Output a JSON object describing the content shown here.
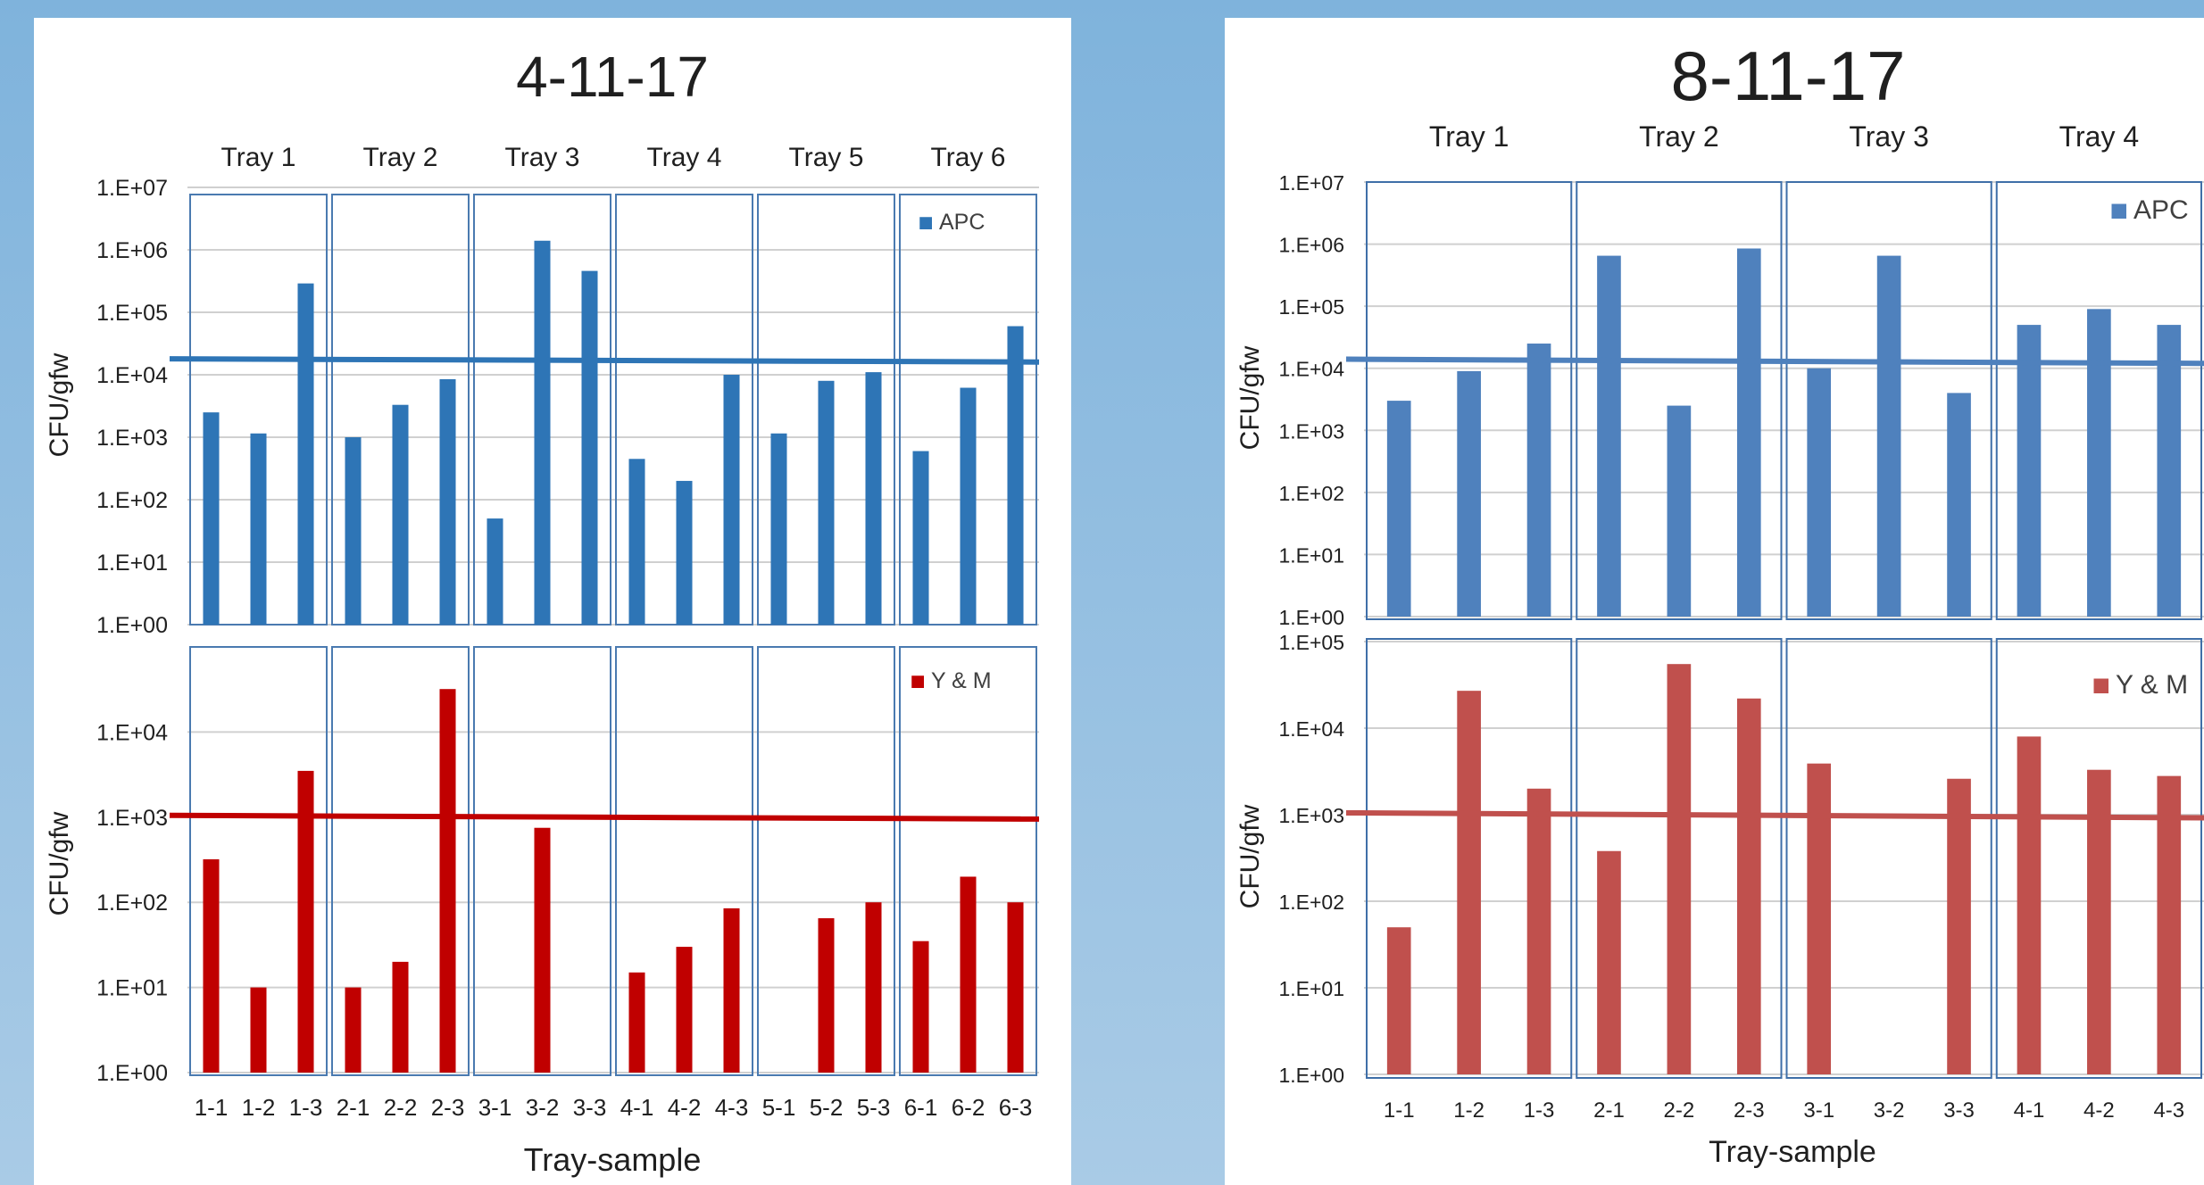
{
  "chart_data": [
    {
      "type": "bar",
      "title": "4-11-17",
      "xlabel": "Tray-sample",
      "ylabel": "CFU/gfw",
      "groups": [
        "Tray 1",
        "Tray 2",
        "Tray 3",
        "Tray 4",
        "Tray 5",
        "Tray 6"
      ],
      "categories": [
        "1-1",
        "1-2",
        "1-3",
        "2-1",
        "2-2",
        "2-3",
        "3-1",
        "3-2",
        "3-3",
        "4-1",
        "4-2",
        "4-3",
        "5-1",
        "5-2",
        "5-3",
        "6-1",
        "6-2",
        "6-3"
      ],
      "panels": [
        {
          "name": "APC",
          "color": "#2e75b6",
          "yscale": "log",
          "ylim": [
            1,
            10000000
          ],
          "yticks": [
            "1.E+00",
            "1.E+01",
            "1.E+02",
            "1.E+03",
            "1.E+04",
            "1.E+05",
            "1.E+06",
            "1.E+07"
          ],
          "values": [
            2500,
            1150,
            290000,
            1000,
            3300,
            8500,
            50,
            1400000,
            460000,
            450,
            200,
            10000,
            1150,
            8000,
            11000,
            600,
            6200,
            60000
          ],
          "threshold": [
            18000,
            16000
          ]
        },
        {
          "name": "Y & M",
          "color": "#c00000",
          "yscale": "log",
          "ylim": [
            1,
            100000
          ],
          "yticks": [
            "1.E+00",
            "1.E+01",
            "1.E+02",
            "1.E+03",
            "1.E+04"
          ],
          "values": [
            320,
            10,
            3500,
            10,
            20,
            32000,
            null,
            750,
            null,
            15,
            30,
            85,
            null,
            65,
            100,
            35,
            200,
            100
          ],
          "threshold": [
            1050,
            950
          ]
        }
      ]
    },
    {
      "type": "bar",
      "title": "8-11-17",
      "xlabel": "Tray-sample",
      "ylabel": "CFU/gfw",
      "groups": [
        "Tray 1",
        "Tray 2",
        "Tray 3",
        "Tray 4"
      ],
      "categories": [
        "1-1",
        "1-2",
        "1-3",
        "2-1",
        "2-2",
        "2-3",
        "3-1",
        "3-2",
        "3-3",
        "4-1",
        "4-2",
        "4-3"
      ],
      "panels": [
        {
          "name": "APC",
          "color": "#4f81bd",
          "yscale": "log",
          "ylim": [
            1,
            10000000
          ],
          "yticks": [
            "1.E+00",
            "1.E+01",
            "1.E+02",
            "1.E+03",
            "1.E+04",
            "1.E+05",
            "1.E+06",
            "1.E+07"
          ],
          "values": [
            3000,
            9000,
            25000,
            650000,
            2500,
            850000,
            10000,
            650000,
            4000,
            50000,
            90000,
            50000
          ],
          "threshold": [
            14000,
            12000
          ]
        },
        {
          "name": "Y & M",
          "color": "#c0504d",
          "yscale": "log",
          "ylim": [
            1,
            100000
          ],
          "yticks": [
            "1.E+00",
            "1.E+01",
            "1.E+02",
            "1.E+03",
            "1.E+04",
            "1.E+05"
          ],
          "values": [
            50,
            27000,
            2000,
            380,
            55000,
            22000,
            3900,
            null,
            2600,
            8000,
            3300,
            2800
          ],
          "threshold": [
            1050,
            920
          ]
        }
      ]
    }
  ]
}
